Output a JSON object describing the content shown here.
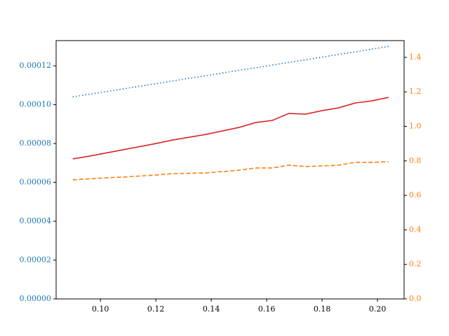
{
  "chart_data": {
    "type": "line",
    "x": [
      0.09,
      0.096,
      0.102,
      0.108,
      0.114,
      0.12,
      0.126,
      0.132,
      0.138,
      0.144,
      0.15,
      0.156,
      0.162,
      0.168,
      0.174,
      0.18,
      0.186,
      0.192,
      0.198,
      0.204
    ],
    "series": [
      {
        "color": "#1f77b4",
        "linestyle": "dotted",
        "axis": "y",
        "values": [
          0.000104,
          0.0001054,
          0.0001067,
          0.0001081,
          0.0001095,
          0.0001108,
          0.0001122,
          0.0001136,
          0.0001149,
          0.0001163,
          0.0001177,
          0.000119,
          0.0001204,
          0.0001218,
          0.0001231,
          0.0001245,
          0.0001259,
          0.0001272,
          0.0001286,
          0.00013
        ]
      },
      {
        "color": "#d62728",
        "linestyle": "solid",
        "axis": "y",
        "values": [
          7.207e-05,
          7.351e-05,
          7.514e-05,
          7.676e-05,
          7.838e-05,
          8e-05,
          8.18e-05,
          8.324e-05,
          8.468e-05,
          8.649e-05,
          8.829e-05,
          9.081e-05,
          9.189e-05,
          9.55e-05,
          9.514e-05,
          9.694e-05,
          9.838e-05,
          0.0001009,
          0.00010198,
          0.00010378
        ]
      },
      {
        "color": "#ff7f0e",
        "linestyle": "dashed",
        "axis": "y2",
        "values": [
          0.69,
          0.696,
          0.702,
          0.706,
          0.712,
          0.718,
          0.726,
          0.728,
          0.73,
          0.738,
          0.746,
          0.759,
          0.759,
          0.775,
          0.767,
          0.771,
          0.775,
          0.791,
          0.791,
          0.795
        ]
      }
    ],
    "xlim": [
      0.084,
      0.2096
    ],
    "xticks": [
      {
        "value": 0.1,
        "label": "0.10"
      },
      {
        "value": 0.12,
        "label": "0.12"
      },
      {
        "value": 0.14,
        "label": "0.14"
      },
      {
        "value": 0.16,
        "label": "0.16"
      },
      {
        "value": 0.18,
        "label": "0.18"
      },
      {
        "value": 0.2,
        "label": "0.20"
      }
    ],
    "ylim": [
      0,
      0.000133
    ],
    "yticks": [
      {
        "value": 0,
        "label": "0.00000"
      },
      {
        "value": 2e-05,
        "label": "0.00002"
      },
      {
        "value": 4e-05,
        "label": "0.00004"
      },
      {
        "value": 6e-05,
        "label": "0.00006"
      },
      {
        "value": 8e-05,
        "label": "0.00008"
      },
      {
        "value": 0.0001,
        "label": "0.00010"
      },
      {
        "value": 0.00012,
        "label": "0.00012"
      }
    ],
    "ycolor": "#1f77b4",
    "y2lim": [
      0,
      1.497
    ],
    "y2ticks": [
      {
        "value": 0,
        "label": "0.0"
      },
      0.2,
      0.4,
      0.6,
      0.8,
      {
        "value": 1,
        "label": "1.0"
      },
      1.2,
      1.4
    ],
    "y2color": "#ff7f0e"
  }
}
